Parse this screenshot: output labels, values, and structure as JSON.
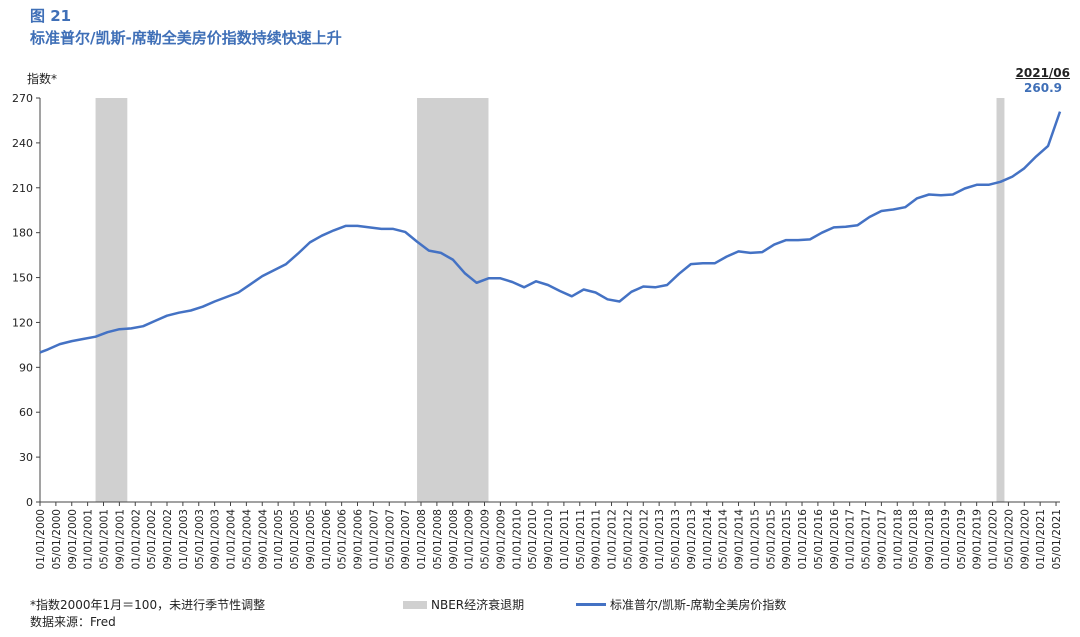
{
  "figure": {
    "number": "图 21",
    "title": "标准普尔/凯斯-席勒全美房价指数持续快速上升",
    "unit_label": "指数*",
    "end_date": "2021/06",
    "end_value": "260.9",
    "note": "*指数2000年1月＝100，未进行季节性调整",
    "source": "数据来源：Fred"
  },
  "legend": {
    "recession": "NBER经济衰退期",
    "series": "标准普尔/凯斯-席勒全美房价指数"
  },
  "colors": {
    "line": "#4472c4",
    "recession": "#d0d0d0",
    "title": "#3f6fb7"
  },
  "chart_data": {
    "type": "line",
    "ylim": [
      0,
      270
    ],
    "yticks": [
      0,
      30,
      60,
      90,
      120,
      150,
      180,
      210,
      240,
      270
    ],
    "x_start": "2000-01",
    "x_end": "2021-06",
    "xtick_labels": [
      "01/01/2000",
      "05/01/2000",
      "09/01/2000",
      "01/01/2001",
      "05/01/2001",
      "09/01/2001",
      "01/01/2002",
      "05/01/2002",
      "09/01/2002",
      "01/01/2003",
      "05/01/2003",
      "09/01/2003",
      "01/01/2004",
      "05/01/2004",
      "09/01/2004",
      "01/01/2005",
      "05/01/2005",
      "09/01/2005",
      "01/01/2006",
      "05/01/2006",
      "09/01/2006",
      "01/01/2007",
      "05/01/2007",
      "09/01/2007",
      "01/01/2008",
      "05/01/2008",
      "09/01/2008",
      "01/01/2009",
      "05/01/2009",
      "09/01/2009",
      "01/01/2010",
      "05/01/2010",
      "09/01/2010",
      "01/01/2011",
      "05/01/2011",
      "09/01/2011",
      "01/01/2012",
      "05/01/2012",
      "09/01/2012",
      "01/01/2013",
      "05/01/2013",
      "09/01/2013",
      "01/01/2014",
      "05/01/2014",
      "09/01/2014",
      "01/01/2015",
      "05/01/2015",
      "09/01/2015",
      "01/01/2016",
      "05/01/2016",
      "09/01/2016",
      "01/01/2017",
      "05/01/2017",
      "09/01/2017",
      "01/01/2018",
      "05/01/2018",
      "09/01/2018",
      "01/01/2019",
      "05/01/2019",
      "09/01/2019",
      "01/01/2020",
      "05/01/2020",
      "09/01/2020",
      "01/01/2021",
      "05/01/2021"
    ],
    "recessions": [
      {
        "start": "2001-03",
        "end": "2001-11"
      },
      {
        "start": "2007-12",
        "end": "2009-06"
      },
      {
        "start": "2020-02",
        "end": "2020-04"
      }
    ],
    "series": [
      {
        "name": "标准普尔/凯斯-席勒全美房价指数",
        "points": [
          [
            "2000-01",
            100.0
          ],
          [
            "2000-03",
            102.0
          ],
          [
            "2000-06",
            105.5
          ],
          [
            "2000-09",
            107.5
          ],
          [
            "2000-12",
            109.0
          ],
          [
            "2001-03",
            110.5
          ],
          [
            "2001-06",
            113.5
          ],
          [
            "2001-09",
            115.5
          ],
          [
            "2001-12",
            116.0
          ],
          [
            "2002-03",
            117.5
          ],
          [
            "2002-06",
            121.0
          ],
          [
            "2002-09",
            124.5
          ],
          [
            "2002-12",
            126.5
          ],
          [
            "2003-03",
            128.0
          ],
          [
            "2003-06",
            130.5
          ],
          [
            "2003-09",
            134.0
          ],
          [
            "2003-12",
            137.0
          ],
          [
            "2004-03",
            140.0
          ],
          [
            "2004-06",
            145.5
          ],
          [
            "2004-09",
            151.0
          ],
          [
            "2004-12",
            155.0
          ],
          [
            "2005-03",
            159.0
          ],
          [
            "2005-06",
            166.0
          ],
          [
            "2005-09",
            173.5
          ],
          [
            "2005-12",
            178.0
          ],
          [
            "2006-03",
            181.5
          ],
          [
            "2006-06",
            184.5
          ],
          [
            "2006-09",
            184.5
          ],
          [
            "2006-12",
            183.5
          ],
          [
            "2007-03",
            182.5
          ],
          [
            "2007-06",
            182.5
          ],
          [
            "2007-09",
            180.5
          ],
          [
            "2007-12",
            174.0
          ],
          [
            "2008-03",
            168.0
          ],
          [
            "2008-06",
            166.5
          ],
          [
            "2008-09",
            162.0
          ],
          [
            "2008-12",
            153.0
          ],
          [
            "2009-03",
            146.5
          ],
          [
            "2009-06",
            149.5
          ],
          [
            "2009-09",
            149.5
          ],
          [
            "2009-12",
            147.0
          ],
          [
            "2010-03",
            143.5
          ],
          [
            "2010-06",
            147.5
          ],
          [
            "2010-09",
            145.0
          ],
          [
            "2010-12",
            141.0
          ],
          [
            "2011-03",
            137.5
          ],
          [
            "2011-06",
            142.0
          ],
          [
            "2011-09",
            140.0
          ],
          [
            "2011-12",
            135.5
          ],
          [
            "2012-03",
            134.0
          ],
          [
            "2012-06",
            140.5
          ],
          [
            "2012-09",
            144.0
          ],
          [
            "2012-12",
            143.5
          ],
          [
            "2013-03",
            145.0
          ],
          [
            "2013-06",
            152.5
          ],
          [
            "2013-09",
            159.0
          ],
          [
            "2013-12",
            159.5
          ],
          [
            "2014-03",
            159.5
          ],
          [
            "2014-06",
            164.0
          ],
          [
            "2014-09",
            167.5
          ],
          [
            "2014-12",
            166.5
          ],
          [
            "2015-03",
            167.0
          ],
          [
            "2015-06",
            172.0
          ],
          [
            "2015-09",
            175.0
          ],
          [
            "2015-12",
            175.0
          ],
          [
            "2016-03",
            175.5
          ],
          [
            "2016-06",
            180.0
          ],
          [
            "2016-09",
            183.5
          ],
          [
            "2016-12",
            184.0
          ],
          [
            "2017-03",
            185.0
          ],
          [
            "2017-06",
            190.5
          ],
          [
            "2017-09",
            194.5
          ],
          [
            "2017-12",
            195.5
          ],
          [
            "2018-03",
            197.0
          ],
          [
            "2018-06",
            203.0
          ],
          [
            "2018-09",
            205.5
          ],
          [
            "2018-12",
            205.0
          ],
          [
            "2019-03",
            205.5
          ],
          [
            "2019-06",
            209.5
          ],
          [
            "2019-09",
            212.0
          ],
          [
            "2019-12",
            212.0
          ],
          [
            "2020-03",
            214.0
          ],
          [
            "2020-06",
            217.5
          ],
          [
            "2020-09",
            223.0
          ],
          [
            "2020-12",
            231.0
          ],
          [
            "2021-03",
            238.0
          ],
          [
            "2021-06",
            260.9
          ]
        ]
      }
    ]
  }
}
